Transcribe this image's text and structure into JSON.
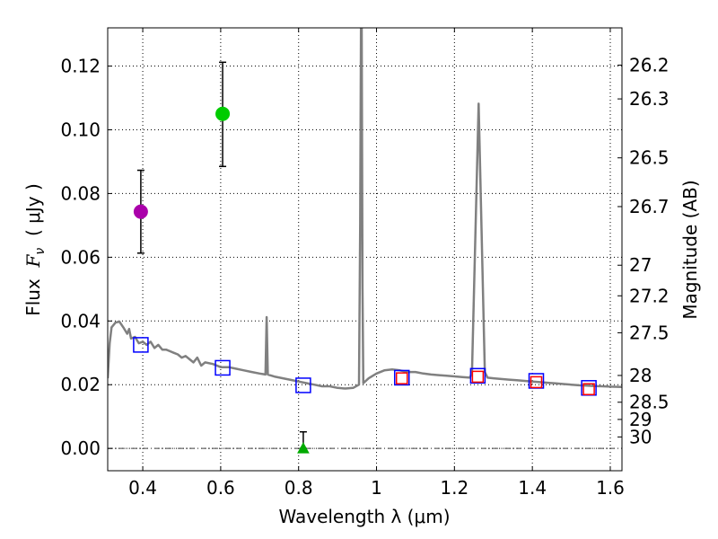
{
  "chart_data": {
    "type": "scatter",
    "xlabel": "Wavelength  λ (μm)",
    "ylabel": "Flux  F_ν  ( μJy )",
    "ylabel_parts": {
      "prefix": "Flux  ",
      "symbol": "F",
      "subscript": "ν",
      "suffix": "  ( μJy )"
    },
    "right_ylabel": "Magnitude (AB)",
    "xlim": [
      0.31,
      1.63
    ],
    "ylim": [
      -0.007,
      0.132
    ],
    "grid": true,
    "x_ticks": [
      0.4,
      0.6,
      0.8,
      1.0,
      1.2,
      1.4,
      1.6
    ],
    "x_tick_labels": [
      "0.4",
      "0.6",
      "0.8",
      "1",
      "1.2",
      "1.4",
      "1.6"
    ],
    "y_ticks": [
      0.0,
      0.02,
      0.04,
      0.06,
      0.08,
      0.1,
      0.12
    ],
    "y_tick_labels": [
      "0.00",
      "0.02",
      "0.04",
      "0.06",
      "0.08",
      "0.10",
      "0.12"
    ],
    "right_ticks": [
      {
        "label": "26.2",
        "flux": 0.1203
      },
      {
        "label": "26.3",
        "flux": 0.1097
      },
      {
        "label": "26.5",
        "flux": 0.0912
      },
      {
        "label": "26.7",
        "flux": 0.0759
      },
      {
        "label": "27",
        "flux": 0.0575
      },
      {
        "label": "27.2",
        "flux": 0.0479
      },
      {
        "label": "27.5",
        "flux": 0.0363
      },
      {
        "label": "28",
        "flux": 0.0229
      },
      {
        "label": "28.5",
        "flux": 0.0145
      },
      {
        "label": "29",
        "flux": 0.0091
      },
      {
        "label": "30",
        "flux": 0.0036
      }
    ],
    "series": [
      {
        "name": "model-sed",
        "kind": "line",
        "color": "#808080",
        "points": [
          [
            0.31,
            0.022
          ],
          [
            0.315,
            0.033
          ],
          [
            0.32,
            0.038
          ],
          [
            0.33,
            0.0395
          ],
          [
            0.34,
            0.0398
          ],
          [
            0.35,
            0.038
          ],
          [
            0.36,
            0.036
          ],
          [
            0.365,
            0.0375
          ],
          [
            0.37,
            0.0345
          ],
          [
            0.38,
            0.035
          ],
          [
            0.39,
            0.033
          ],
          [
            0.4,
            0.0335
          ],
          [
            0.41,
            0.0325
          ],
          [
            0.42,
            0.0335
          ],
          [
            0.43,
            0.0315
          ],
          [
            0.44,
            0.0325
          ],
          [
            0.45,
            0.031
          ],
          [
            0.46,
            0.031
          ],
          [
            0.47,
            0.0305
          ],
          [
            0.48,
            0.03
          ],
          [
            0.49,
            0.0295
          ],
          [
            0.5,
            0.0285
          ],
          [
            0.51,
            0.029
          ],
          [
            0.52,
            0.028
          ],
          [
            0.53,
            0.027
          ],
          [
            0.54,
            0.0285
          ],
          [
            0.55,
            0.026
          ],
          [
            0.56,
            0.027
          ],
          [
            0.58,
            0.0265
          ],
          [
            0.6,
            0.0255
          ],
          [
            0.62,
            0.0255
          ],
          [
            0.64,
            0.025
          ],
          [
            0.66,
            0.0245
          ],
          [
            0.68,
            0.024
          ],
          [
            0.7,
            0.0235
          ],
          [
            0.715,
            0.0232
          ],
          [
            0.718,
            0.0412
          ],
          [
            0.721,
            0.0232
          ],
          [
            0.74,
            0.0225
          ],
          [
            0.76,
            0.022
          ],
          [
            0.78,
            0.0215
          ],
          [
            0.8,
            0.021
          ],
          [
            0.82,
            0.0205
          ],
          [
            0.84,
            0.02
          ],
          [
            0.86,
            0.0195
          ],
          [
            0.88,
            0.0195
          ],
          [
            0.9,
            0.019
          ],
          [
            0.92,
            0.0188
          ],
          [
            0.94,
            0.019
          ],
          [
            0.955,
            0.02
          ],
          [
            0.958,
            0.07
          ],
          [
            0.96,
            0.132
          ],
          [
            0.962,
            0.132
          ],
          [
            0.964,
            0.05
          ],
          [
            0.966,
            0.0205
          ],
          [
            0.98,
            0.022
          ],
          [
            1.0,
            0.0235
          ],
          [
            1.02,
            0.0245
          ],
          [
            1.04,
            0.0248
          ],
          [
            1.06,
            0.0245
          ],
          [
            1.08,
            0.024
          ],
          [
            1.1,
            0.024
          ],
          [
            1.12,
            0.0235
          ],
          [
            1.14,
            0.0232
          ],
          [
            1.16,
            0.023
          ],
          [
            1.18,
            0.0228
          ],
          [
            1.2,
            0.0226
          ],
          [
            1.22,
            0.0224
          ],
          [
            1.24,
            0.0222
          ],
          [
            1.245,
            0.024
          ],
          [
            1.262,
            0.1082
          ],
          [
            1.278,
            0.024
          ],
          [
            1.285,
            0.0222
          ],
          [
            1.3,
            0.022
          ],
          [
            1.32,
            0.0218
          ],
          [
            1.34,
            0.0216
          ],
          [
            1.36,
            0.0214
          ],
          [
            1.38,
            0.0212
          ],
          [
            1.4,
            0.021
          ],
          [
            1.42,
            0.0208
          ],
          [
            1.44,
            0.0206
          ],
          [
            1.46,
            0.0204
          ],
          [
            1.48,
            0.0202
          ],
          [
            1.5,
            0.02
          ],
          [
            1.52,
            0.0198
          ],
          [
            1.54,
            0.0197
          ],
          [
            1.56,
            0.0196
          ],
          [
            1.58,
            0.0195
          ],
          [
            1.6,
            0.0194
          ],
          [
            1.63,
            0.0193
          ]
        ]
      },
      {
        "name": "model-photometry",
        "kind": "open-square",
        "color": "#0000ff",
        "points": [
          [
            0.395,
            0.0325
          ],
          [
            0.605,
            0.0253
          ],
          [
            0.812,
            0.0198
          ],
          [
            1.065,
            0.0222
          ],
          [
            1.26,
            0.0228
          ],
          [
            1.41,
            0.0212
          ],
          [
            1.545,
            0.019
          ]
        ]
      },
      {
        "name": "observed-ir",
        "kind": "open-square",
        "color": "#ff0000",
        "points": [
          [
            1.065,
            0.022
          ],
          [
            1.26,
            0.0225
          ],
          [
            1.41,
            0.0208
          ],
          [
            1.545,
            0.0186
          ]
        ]
      },
      {
        "name": "observed-detections",
        "kind": "circle-with-errorbar",
        "points": [
          {
            "x": 0.395,
            "y": 0.0743,
            "ylow": 0.0613,
            "yhigh": 0.0873,
            "color": "#aa00aa"
          },
          {
            "x": 0.605,
            "y": 0.105,
            "ylow": 0.0885,
            "yhigh": 0.1212,
            "color": "#00cc00"
          }
        ]
      },
      {
        "name": "observed-upper-limit",
        "kind": "triangle-with-errorbar",
        "points": [
          {
            "x": 0.812,
            "y": 0.0,
            "ylow": 0.0,
            "yhigh": 0.0052,
            "color": "#00aa00"
          }
        ]
      }
    ],
    "reference_lines": [
      {
        "y": 0.0,
        "style": "dash-dot",
        "color": "#444444"
      }
    ]
  }
}
